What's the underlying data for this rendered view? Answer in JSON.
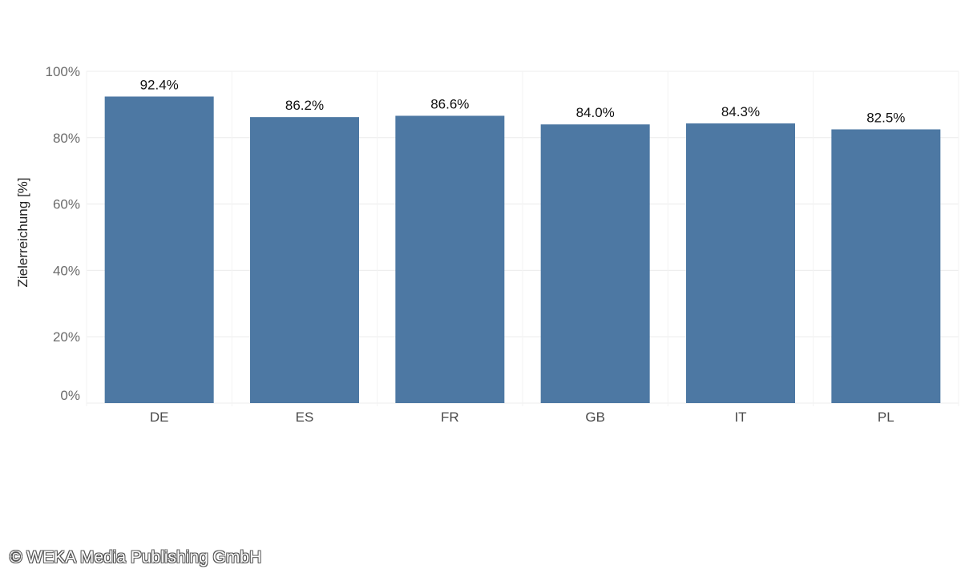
{
  "chart_data": {
    "type": "bar",
    "categories": [
      "DE",
      "ES",
      "FR",
      "GB",
      "IT",
      "PL"
    ],
    "values": [
      92.4,
      86.2,
      86.6,
      84.0,
      84.3,
      82.5
    ],
    "data_labels": [
      "92.4%",
      "86.2%",
      "86.6%",
      "84.0%",
      "84.3%",
      "82.5%"
    ],
    "xlabel": "",
    "ylabel": "Zielerreichung [%]",
    "ylim": [
      0,
      100
    ],
    "yticks": [
      0,
      20,
      40,
      60,
      80,
      100
    ],
    "ytick_labels": [
      "0%",
      "20%",
      "40%",
      "60%",
      "80%",
      "100%"
    ],
    "grid": true,
    "bar_color": "#4d78a3"
  },
  "watermark": "© WEKA Media Publishing GmbH"
}
